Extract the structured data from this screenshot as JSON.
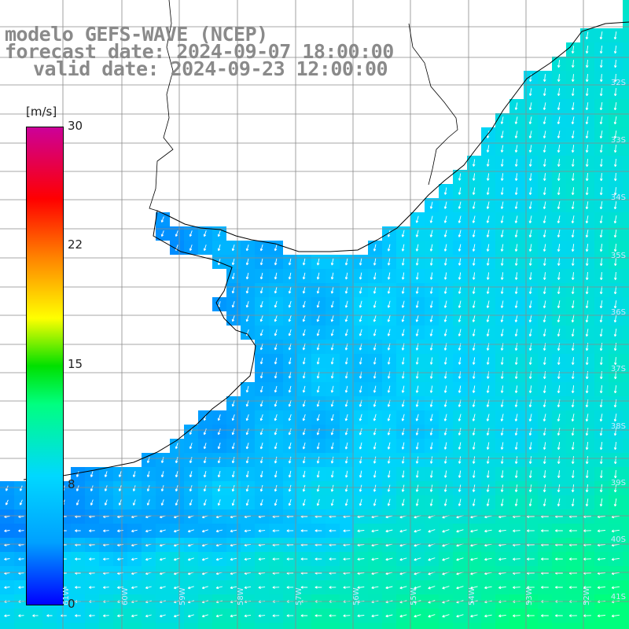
{
  "title": {
    "line1": "modelo GEFS-WAVE (NCEP)",
    "line2": "forecast date: 2024-09-07 18:00:00",
    "line3": "valid date: 2024-09-23 12:00:00"
  },
  "colorbar": {
    "unit": "[m/s]",
    "ticks": [
      "30",
      "22",
      "15",
      "8",
      "0"
    ],
    "colors": [
      "#0000ff",
      "#00a0ff",
      "#00d8ff",
      "#00ff80",
      "#00e000",
      "#ffff00",
      "#ff8000",
      "#ff0000",
      "#cc0099"
    ]
  },
  "grid": {
    "lat_labels": [
      "32S",
      "33S",
      "34S",
      "35S",
      "36S",
      "37S",
      "38S",
      "39S",
      "40S",
      "41S"
    ],
    "lon_labels": [
      "61W",
      "60W",
      "59W",
      "58W",
      "57W",
      "56W",
      "55W",
      "54W",
      "53W",
      "52W"
    ]
  },
  "map": {
    "land_color": "#ffffff",
    "coast_color": "#000000",
    "grid_color": "#8a8a8a",
    "arrow_color": "#ffffff"
  }
}
